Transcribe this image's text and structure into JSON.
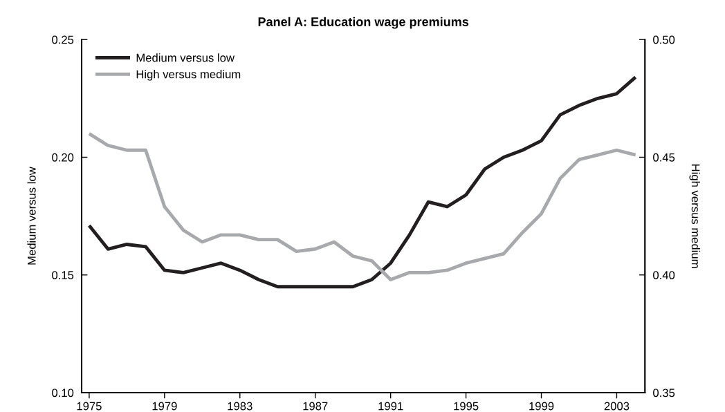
{
  "chart_data": {
    "type": "line",
    "title": "Panel A: Education wage premiums",
    "ylabel": "Medium versus low",
    "y2label": "High versus medium",
    "x": [
      1975,
      1976,
      1977,
      1978,
      1979,
      1980,
      1981,
      1982,
      1983,
      1984,
      1985,
      1986,
      1987,
      1988,
      1989,
      1990,
      1991,
      1992,
      1993,
      1994,
      1995,
      1996,
      1997,
      1998,
      1999,
      2000,
      2001,
      2002,
      2003,
      2004
    ],
    "series": [
      {
        "name": "Medium versus low",
        "color": "#231f20",
        "values": [
          0.171,
          0.161,
          0.163,
          0.162,
          0.152,
          0.151,
          0.153,
          0.155,
          0.152,
          0.148,
          0.145,
          0.145,
          0.145,
          0.145,
          0.145,
          0.148,
          0.155,
          0.167,
          0.181,
          0.179,
          0.184,
          0.195,
          0.2,
          0.203,
          0.207,
          0.218,
          0.222,
          0.225,
          0.227,
          0.234
        ]
      },
      {
        "name": "High versus medium",
        "color": "#a7a9ac",
        "axis": "y2",
        "values": [
          0.46,
          0.455,
          0.453,
          0.453,
          0.429,
          0.419,
          0.414,
          0.417,
          0.417,
          0.415,
          0.415,
          0.41,
          0.411,
          0.414,
          0.408,
          0.406,
          0.398,
          0.401,
          0.401,
          0.402,
          0.405,
          0.407,
          0.409,
          0.418,
          0.426,
          0.441,
          0.449,
          0.451,
          0.453,
          0.451
        ]
      }
    ],
    "xlim": [
      1974.6,
      2004.5
    ],
    "xticks": [
      1975,
      1979,
      1983,
      1987,
      1991,
      1995,
      1999,
      2003
    ],
    "ylim": [
      0.1,
      0.25
    ],
    "yticks": [
      {
        "value": 0.1,
        "label": "0.10"
      },
      0.15,
      {
        "value": 0.2,
        "label": "0.20"
      },
      0.25
    ],
    "y2lim": [
      0.35,
      0.5
    ],
    "y2ticks": [
      0.35,
      {
        "value": 0.4,
        "label": "0.40"
      },
      0.45,
      {
        "value": 0.5,
        "label": "0.50"
      }
    ],
    "legend": "top left",
    "grid": false,
    "marker": "none",
    "line_style": "solid"
  }
}
